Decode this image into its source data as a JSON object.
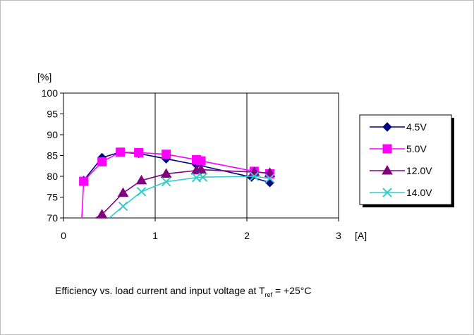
{
  "chart_data": {
    "type": "line",
    "title": "",
    "ylabel": "[%]",
    "xlabel": "[A]",
    "xlim": [
      0,
      3
    ],
    "ylim": [
      70,
      100
    ],
    "xticks": [
      0,
      1,
      2,
      3
    ],
    "yticks": [
      70,
      75,
      80,
      85,
      90,
      95,
      100
    ],
    "grid": "vertical",
    "legend_position": "right",
    "series": [
      {
        "name": "4.5V",
        "color": "#000080",
        "marker": "diamond",
        "x": [
          0.22,
          0.42,
          0.62,
          0.82,
          1.12,
          1.45,
          2.05,
          2.25
        ],
        "y": [
          79.0,
          84.5,
          85.8,
          85.5,
          84.2,
          82.8,
          79.8,
          78.5
        ]
      },
      {
        "name": "5.0V",
        "color": "#ff00ff",
        "marker": "square",
        "x": [
          0.2,
          0.22,
          0.42,
          0.62,
          0.82,
          1.12,
          1.45,
          1.5,
          2.08,
          2.25
        ],
        "y": [
          70.0,
          78.8,
          83.5,
          85.8,
          85.7,
          85.3,
          84.0,
          83.7,
          81.2,
          80.6
        ]
      },
      {
        "name": "12.0V",
        "color": "#800080",
        "marker": "triangle",
        "x": [
          0.35,
          0.42,
          0.65,
          0.85,
          1.12,
          1.45,
          1.5,
          2.08,
          2.25
        ],
        "y": [
          70.0,
          70.8,
          76.0,
          79.0,
          80.6,
          81.4,
          81.6,
          81.0,
          80.8
        ]
      },
      {
        "name": "14.0V",
        "color": "#33cccc",
        "marker": "x",
        "x": [
          0.5,
          0.65,
          0.85,
          1.12,
          1.45,
          1.52,
          2.08,
          2.25
        ],
        "y": [
          70.0,
          72.8,
          76.3,
          78.7,
          79.7,
          79.8,
          80.0,
          79.5
        ]
      }
    ]
  },
  "caption": {
    "prefix": "Efficiency vs. load current and input voltage at T",
    "subscript": "ref",
    "suffix": " = +25°C"
  }
}
